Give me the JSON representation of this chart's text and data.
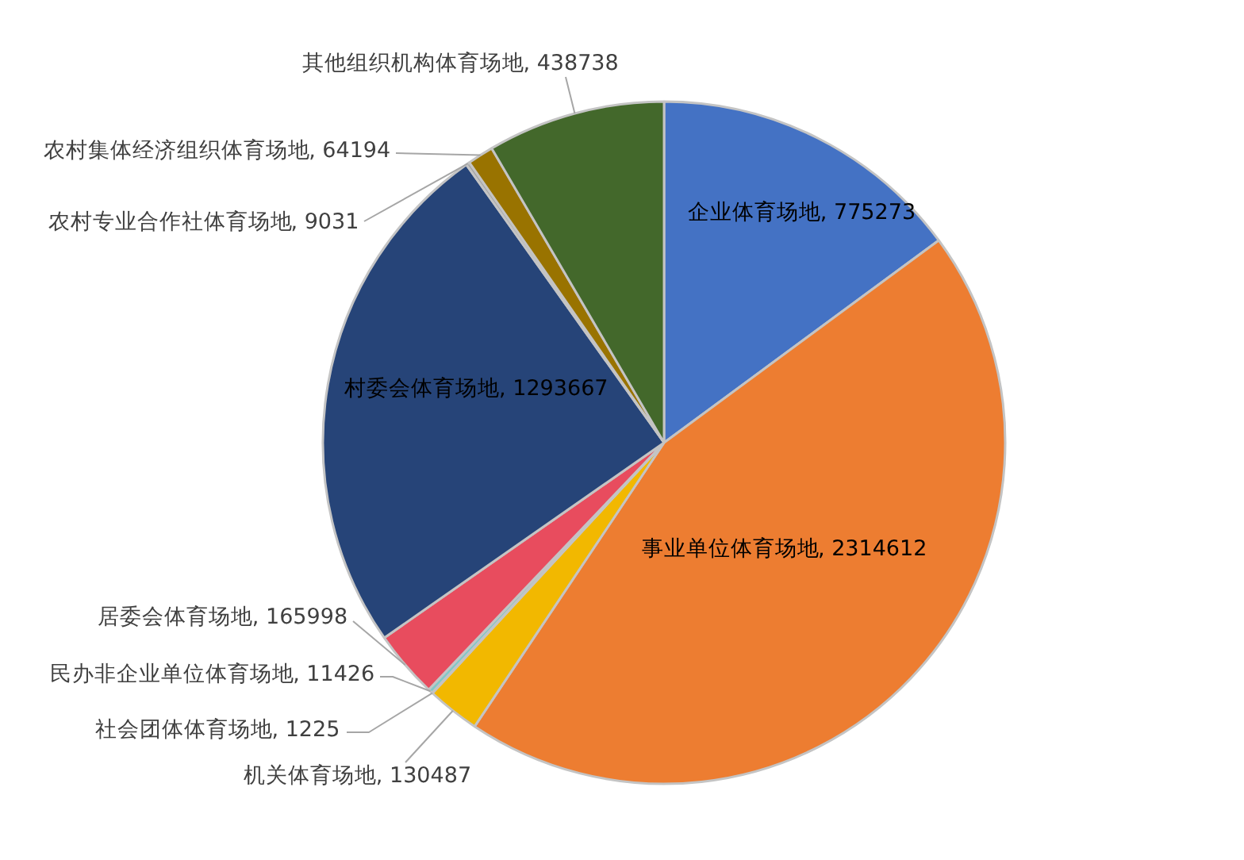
{
  "chart_data": {
    "type": "pie",
    "categories": [
      "企业体育场地",
      "事业单位体育场地",
      "机关体育场地",
      "社会团体体育场地",
      "民办非企业单位体育场地",
      "居委会体育场地",
      "村委会体育场地",
      "农村专业合作社体育场地",
      "农村集体经济组织体育场地",
      "其他组织机构体育场地"
    ],
    "values": [
      775273,
      2314612,
      130487,
      1225,
      11426,
      165998,
      1293667,
      9031,
      64194,
      438738
    ],
    "value_labels": [
      ", 775273",
      ", 2314612",
      ", 130487",
      ", 1225",
      ", 11426",
      ", 165998",
      ", 1293667",
      ", 9031",
      ", 64194",
      ", 438738"
    ],
    "colors": [
      "#4472c4",
      "#ed7d31",
      "#f2b800",
      "#5b9bd5",
      "#80c8c8",
      "#e84c5e",
      "#264478",
      "#a5a5a5",
      "#997300",
      "#43682b"
    ]
  }
}
